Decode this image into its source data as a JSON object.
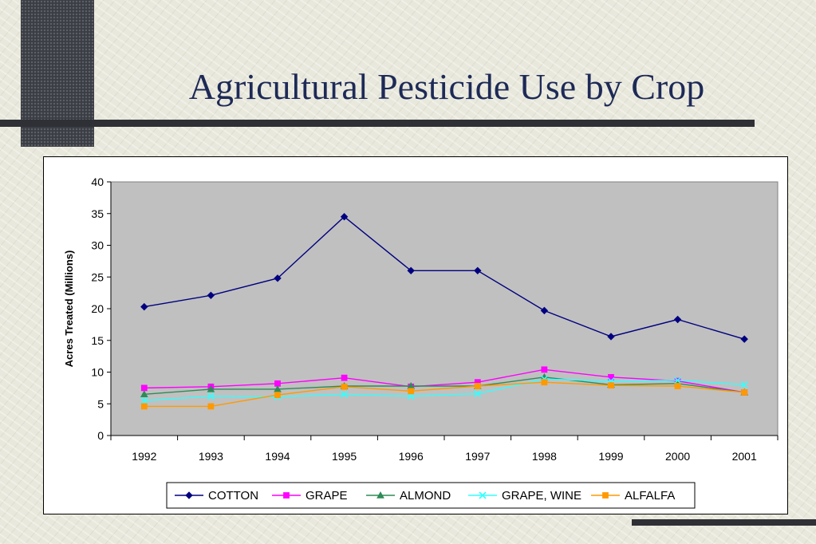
{
  "slide": {
    "title": "Agricultural Pesticide Use by Crop"
  },
  "chart_data": {
    "type": "line",
    "title": "",
    "xlabel": "",
    "ylabel": "Acres Treated (Millions)",
    "ylim": [
      0,
      40
    ],
    "yticks": [
      0,
      5,
      10,
      15,
      20,
      25,
      30,
      35,
      40
    ],
    "categories": [
      "1992",
      "1993",
      "1994",
      "1995",
      "1996",
      "1997",
      "1998",
      "1999",
      "2000",
      "2001"
    ],
    "grid": false,
    "plot_background": "#c0c0c0",
    "legend_position": "bottom",
    "series": [
      {
        "name": "COTTON",
        "color": "#000080",
        "marker": "diamond",
        "values": [
          20.3,
          22.1,
          24.8,
          34.5,
          26.0,
          26.0,
          19.7,
          15.6,
          18.3,
          15.2
        ]
      },
      {
        "name": "GRAPE",
        "color": "#ff00ff",
        "marker": "square",
        "values": [
          7.5,
          7.7,
          8.2,
          9.1,
          7.7,
          8.4,
          10.4,
          9.2,
          8.6,
          6.8
        ]
      },
      {
        "name": "ALMOND",
        "color": "#2e8b57",
        "marker": "triangle",
        "values": [
          6.5,
          7.3,
          7.3,
          7.8,
          7.8,
          7.8,
          9.2,
          8.0,
          8.2,
          6.8
        ]
      },
      {
        "name": "GRAPE, WINE",
        "color": "#33ffff",
        "marker": "x",
        "values": [
          5.5,
          6.2,
          6.1,
          6.5,
          6.2,
          6.6,
          8.9,
          8.6,
          8.7,
          8.0
        ]
      },
      {
        "name": "ALFALFA",
        "color": "#ff9900",
        "marker": "square",
        "values": [
          4.6,
          4.6,
          6.4,
          7.7,
          7.0,
          7.8,
          8.4,
          7.9,
          7.8,
          6.8
        ]
      }
    ]
  }
}
